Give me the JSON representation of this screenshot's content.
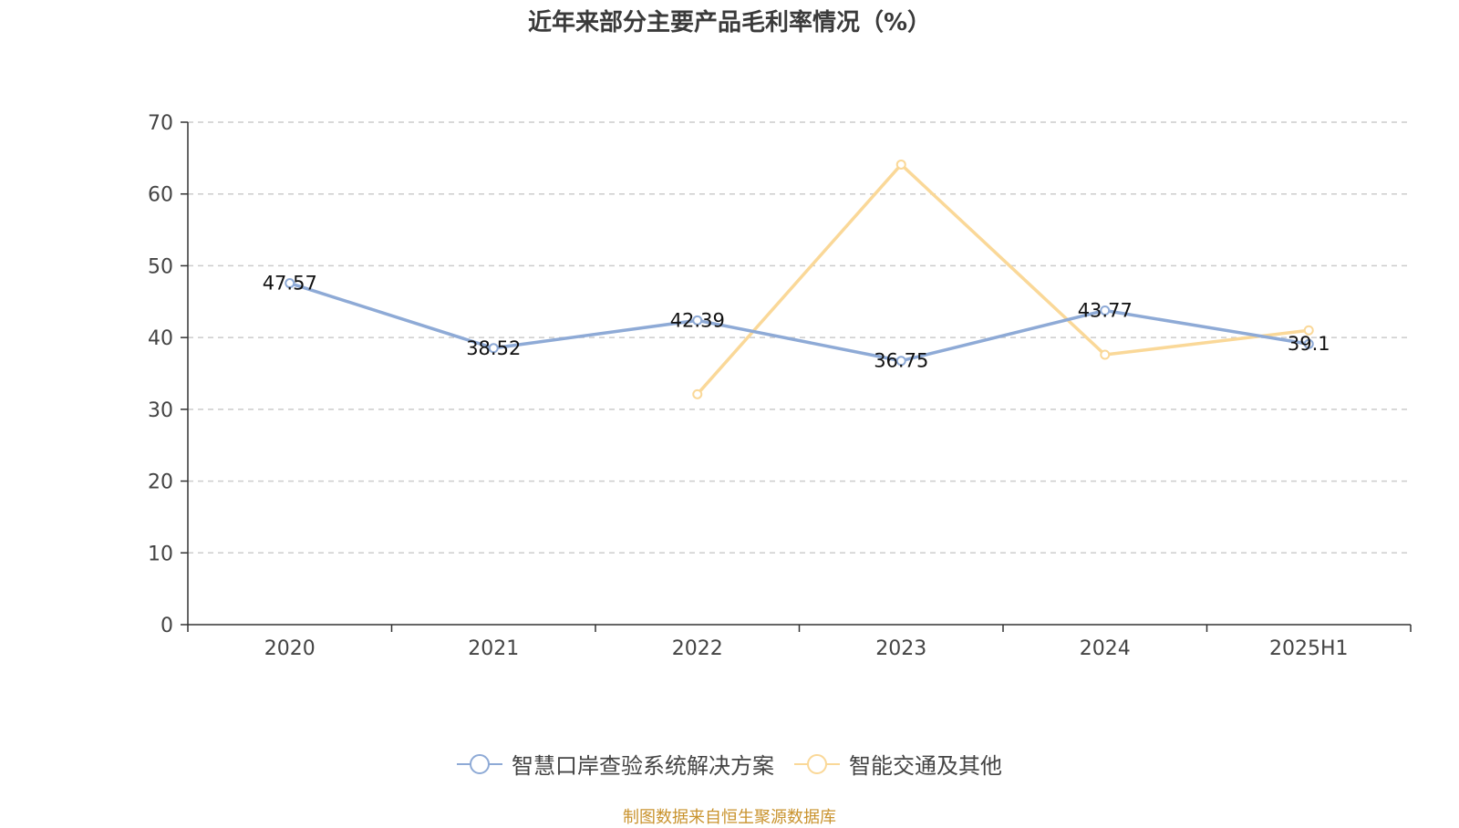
{
  "chart_data": {
    "type": "line",
    "title": "近年来部分主要产品毛利率情况（%）",
    "categories": [
      "2020",
      "2021",
      "2022",
      "2023",
      "2024",
      "2025H1"
    ],
    "y_ticks": [
      "0",
      "10",
      "20",
      "30",
      "40",
      "50",
      "60",
      "70"
    ],
    "ylim": [
      0,
      70
    ],
    "grid": true,
    "legend_position": "bottom",
    "series": [
      {
        "name": "智慧口岸查验系统解决方案",
        "color": "#8eaad6",
        "values": [
          47.57,
          38.52,
          42.39,
          36.75,
          43.77,
          39.1
        ],
        "labels": [
          "47.57",
          "38.52",
          "42.39",
          "36.75",
          "43.77",
          "39.1"
        ]
      },
      {
        "name": "智能交通及其他",
        "color": "#fad898",
        "values": [
          null,
          null,
          32.1,
          64.1,
          37.6,
          41.0
        ],
        "labels": []
      }
    ]
  },
  "source": "制图数据来自恒生聚源数据库"
}
